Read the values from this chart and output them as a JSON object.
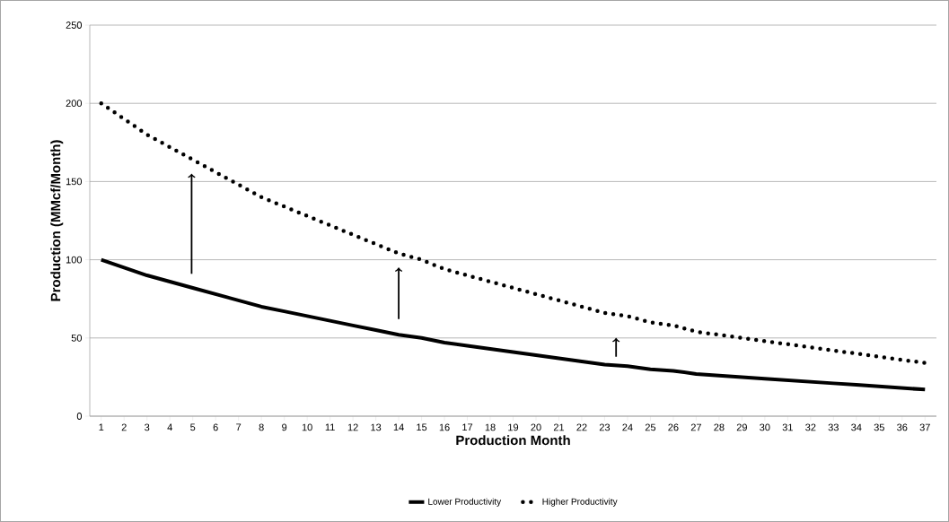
{
  "chart_data": {
    "type": "line",
    "xlabel": "Production Month",
    "ylabel": "Production (MMcf/Month)",
    "categories": [
      "1",
      "2",
      "3",
      "4",
      "5",
      "6",
      "7",
      "8",
      "9",
      "10",
      "11",
      "12",
      "13",
      "14",
      "15",
      "16",
      "17",
      "18",
      "19",
      "20",
      "21",
      "22",
      "23",
      "24",
      "25",
      "26",
      "27",
      "28",
      "29",
      "30",
      "31",
      "32",
      "33",
      "34",
      "35",
      "36",
      "37"
    ],
    "series": [
      {
        "name": "Lower Productivity",
        "color": "#000000",
        "line_style": "solid",
        "values": [
          100,
          95,
          90,
          86,
          82,
          78,
          74,
          70,
          67,
          64,
          61,
          58,
          55,
          52,
          50,
          47,
          45,
          43,
          41,
          39,
          37,
          35,
          33,
          32,
          30,
          29,
          27,
          26,
          25,
          24,
          23,
          22,
          21,
          20,
          19,
          18,
          17
        ]
      },
      {
        "name": "Higher Productivity",
        "color": "#000000",
        "line_style": "dotted",
        "values": [
          200,
          190,
          180,
          172,
          164,
          156,
          148,
          140,
          134,
          128,
          122,
          116,
          110,
          104,
          100,
          94,
          90,
          86,
          82,
          78,
          74,
          70,
          66,
          64,
          60,
          58,
          54,
          52,
          50,
          48,
          46,
          44,
          42,
          40,
          38,
          36,
          34
        ]
      }
    ],
    "ylim": [
      0,
      250
    ],
    "yticks": [
      0,
      50,
      100,
      150,
      200,
      250
    ],
    "grid": "y",
    "legend": "bottom",
    "marker": "none"
  }
}
